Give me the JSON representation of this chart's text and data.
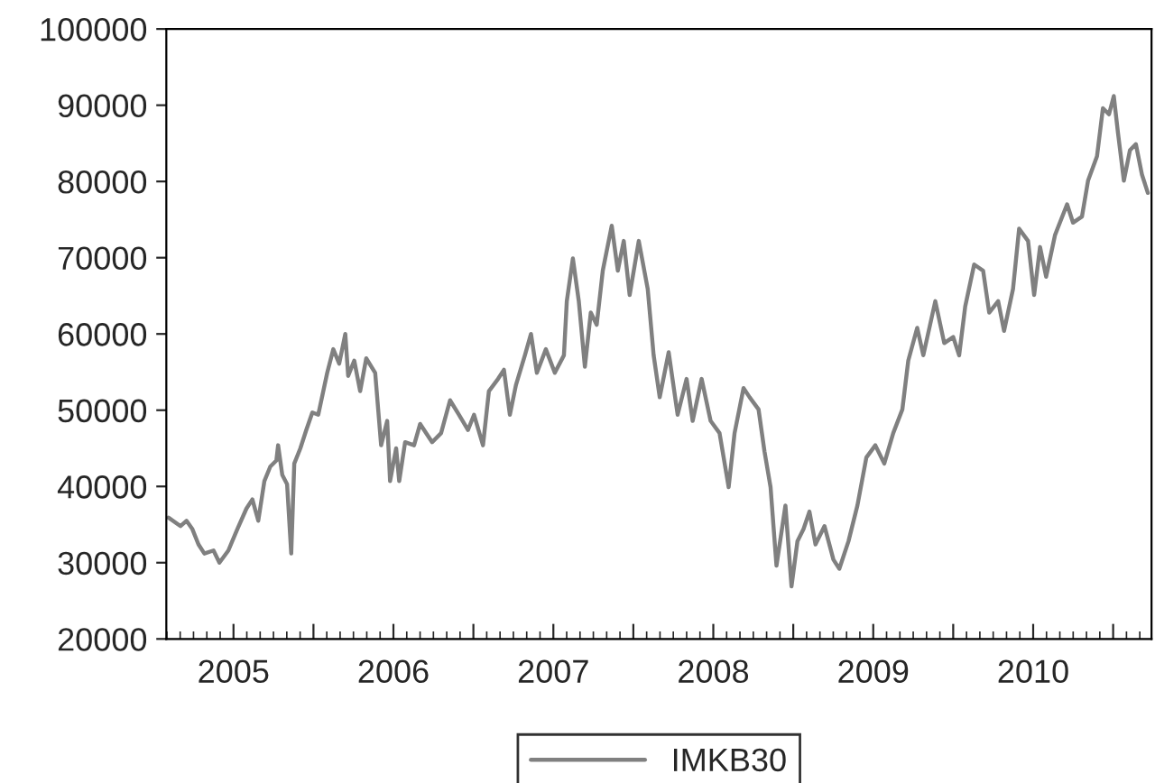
{
  "chart_data": {
    "type": "line",
    "xlim": [
      2005.08,
      2011.24
    ],
    "xticks": [
      {
        "value": 2005.5,
        "label": "2005"
      },
      {
        "value": 2006,
        "label": null
      },
      {
        "value": 2006.5,
        "label": "2006"
      },
      {
        "value": 2007,
        "label": null
      },
      {
        "value": 2007.5,
        "label": "2007"
      },
      {
        "value": 2008,
        "label": null
      },
      {
        "value": 2008.5,
        "label": "2008"
      },
      {
        "value": 2009,
        "label": null
      },
      {
        "value": 2009.5,
        "label": "2009"
      },
      {
        "value": 2010,
        "label": null
      },
      {
        "value": 2010.5,
        "label": "2010"
      },
      {
        "value": 2011,
        "label": null
      }
    ],
    "ylim": [
      20000,
      100000
    ],
    "yticks": [
      20000,
      30000,
      40000,
      50000,
      60000,
      70000,
      80000,
      90000,
      100000
    ],
    "grid": false,
    "legend": "bottom",
    "marker": "none",
    "line_style": "solid",
    "series": [
      {
        "name": "IMKB30",
        "color": "#808080",
        "x": [
          2005.094,
          2005.169,
          2005.206,
          2005.243,
          2005.281,
          2005.318,
          2005.375,
          2005.412,
          2005.468,
          2005.524,
          2005.581,
          2005.618,
          2005.655,
          2005.693,
          2005.73,
          2005.768,
          2005.779,
          2005.805,
          2005.835,
          2005.861,
          2005.88,
          2005.918,
          2005.955,
          2005.993,
          2006.03,
          2006.086,
          2006.124,
          2006.161,
          2006.199,
          2006.217,
          2006.255,
          2006.292,
          2006.33,
          2006.386,
          2006.423,
          2006.461,
          2006.479,
          2006.517,
          2006.536,
          2006.573,
          2006.629,
          2006.667,
          2006.742,
          2006.798,
          2006.854,
          2006.91,
          2006.966,
          2007.004,
          2007.06,
          2007.097,
          2007.154,
          2007.191,
          2007.228,
          2007.266,
          2007.322,
          2007.36,
          2007.397,
          2007.453,
          2007.509,
          2007.566,
          2007.584,
          2007.622,
          2007.659,
          2007.697,
          2007.734,
          2007.771,
          2007.809,
          2007.865,
          2007.903,
          2007.94,
          2007.977,
          2008.034,
          2008.09,
          2008.127,
          2008.165,
          2008.221,
          2008.277,
          2008.333,
          2008.371,
          2008.427,
          2008.483,
          2008.539,
          2008.596,
          2008.633,
          2008.689,
          2008.727,
          2008.783,
          2008.82,
          2008.858,
          2008.895,
          2008.951,
          2008.989,
          2009.026,
          2009.064,
          2009.101,
          2009.139,
          2009.195,
          2009.251,
          2009.288,
          2009.345,
          2009.401,
          2009.457,
          2009.513,
          2009.569,
          2009.625,
          2009.682,
          2009.719,
          2009.775,
          2009.813,
          2009.888,
          2009.944,
          2010.0,
          2010.037,
          2010.075,
          2010.131,
          2010.187,
          2010.225,
          2010.281,
          2010.318,
          2010.374,
          2010.412,
          2010.468,
          2010.506,
          2010.543,
          2010.581,
          2010.637,
          2010.712,
          2010.749,
          2010.805,
          2010.843,
          2010.899,
          2010.936,
          2010.974,
          2011.004,
          2011.03,
          2011.067,
          2011.105,
          2011.142,
          2011.18,
          2011.217
        ],
        "values": [
          35900,
          34800,
          35500,
          34400,
          32400,
          31200,
          31600,
          30000,
          31600,
          34400,
          37100,
          38300,
          35500,
          40700,
          42600,
          43400,
          45400,
          41500,
          40300,
          31200,
          43000,
          45000,
          47400,
          49700,
          49400,
          54900,
          58000,
          56100,
          60000,
          54500,
          56500,
          52500,
          56800,
          54900,
          45400,
          48600,
          40700,
          45000,
          40700,
          45800,
          45400,
          48200,
          45800,
          47000,
          51300,
          49400,
          47400,
          49400,
          45400,
          52500,
          54100,
          55300,
          49400,
          53300,
          57200,
          60000,
          54900,
          58000,
          54900,
          57200,
          64300,
          69900,
          64300,
          55700,
          62800,
          61200,
          68300,
          74200,
          68300,
          72200,
          65100,
          72200,
          65900,
          57200,
          51700,
          57600,
          49400,
          54100,
          48600,
          54100,
          48600,
          47000,
          39900,
          47000,
          52900,
          51700,
          50100,
          44600,
          39900,
          29600,
          37500,
          26900,
          32800,
          34400,
          36700,
          32400,
          34800,
          30400,
          29200,
          32800,
          37500,
          43800,
          45400,
          43000,
          47000,
          50100,
          56500,
          60800,
          57200,
          64300,
          58800,
          59600,
          57200,
          63600,
          69100,
          68300,
          62800,
          64300,
          60400,
          65900,
          73800,
          72200,
          65100,
          71400,
          67500,
          73000,
          77000,
          74600,
          75400,
          80100,
          83300,
          89600,
          88800,
          91200,
          86400,
          80100,
          84100,
          84900,
          80900,
          78500
        ]
      }
    ]
  }
}
